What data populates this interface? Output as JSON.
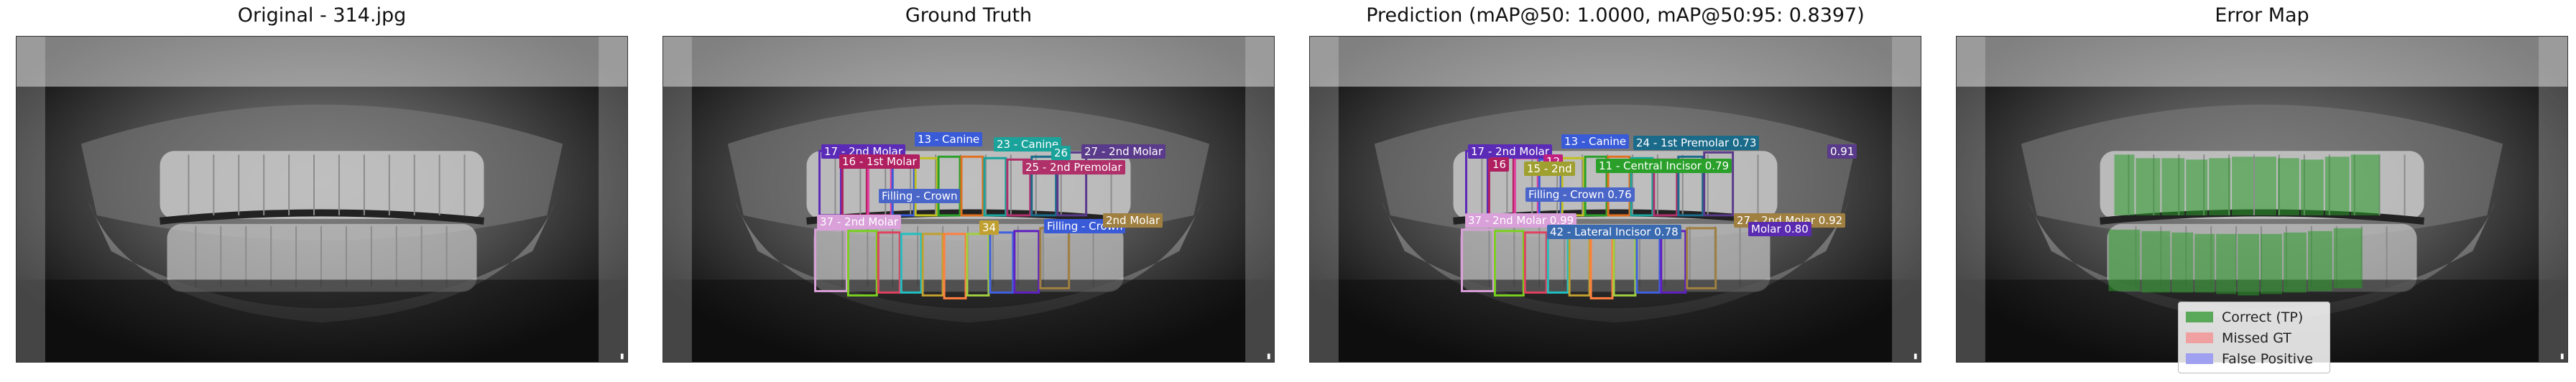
{
  "panels": [
    {
      "title": "Original - 314.jpg"
    },
    {
      "title": "Ground Truth"
    },
    {
      "title": "Prediction (mAP@50: 1.0000, mAP@50:95: 0.8397)"
    },
    {
      "title": "Error Map"
    }
  ],
  "gt_labels": [
    {
      "text": "13 - Canine",
      "color": "#3a5bd8"
    },
    {
      "text": "23 - Canine",
      "color": "#1aa39a"
    },
    {
      "text": "17 - 2nd Molar",
      "color": "#5b2bb8"
    },
    {
      "text": "26",
      "color": "#1aa39a"
    },
    {
      "text": "27 - 2nd Molar",
      "color": "#5a3a8a"
    },
    {
      "text": "16 - 1st Molar",
      "color": "#b02060"
    },
    {
      "text": "25 - 2nd Premolar",
      "color": "#b0306a"
    },
    {
      "text": "Filling - Crown",
      "color": "#4a66c8"
    },
    {
      "text": "37 - 2nd Molar",
      "color": "#d9a0d9"
    },
    {
      "text": "Filling - Crown",
      "color": "#3a5bd8"
    },
    {
      "text": "34",
      "color": "#c0a030"
    },
    {
      "text": "2nd Molar",
      "color": "#a08040"
    }
  ],
  "pred_labels": [
    {
      "text": "13 - Canine",
      "color": "#3a5bd8"
    },
    {
      "text": "24 - 1st Premolar 0.73",
      "color": "#1a6a8a"
    },
    {
      "text": "0.91",
      "color": "#5a3a8a"
    },
    {
      "text": "17 - 2nd Molar",
      "color": "#5b2bb8"
    },
    {
      "text": "16",
      "color": "#b02060"
    },
    {
      "text": "12",
      "color": "#c02080"
    },
    {
      "text": "15 - 2nd",
      "color": "#a0a030"
    },
    {
      "text": "11 - Central Incisor 0.79",
      "color": "#2aa02a"
    },
    {
      "text": "Filling - Crown 0.76",
      "color": "#4a66c8"
    },
    {
      "text": "37 - 2nd Molar 0.99",
      "color": "#d9a0d9"
    },
    {
      "text": "27 - 2nd Molar 0.92",
      "color": "#a08040"
    },
    {
      "text": "42 - Lateral Incisor 0.78",
      "color": "#3a6ab0"
    },
    {
      "text": "Molar 0.80",
      "color": "#5a2ab0"
    }
  ],
  "legend": [
    {
      "label": "Correct (TP)",
      "color": "#5aa85a"
    },
    {
      "label": "Missed GT",
      "color": "#f0a0a0"
    },
    {
      "label": "False Positive",
      "color": "#a0a0f0"
    }
  ]
}
